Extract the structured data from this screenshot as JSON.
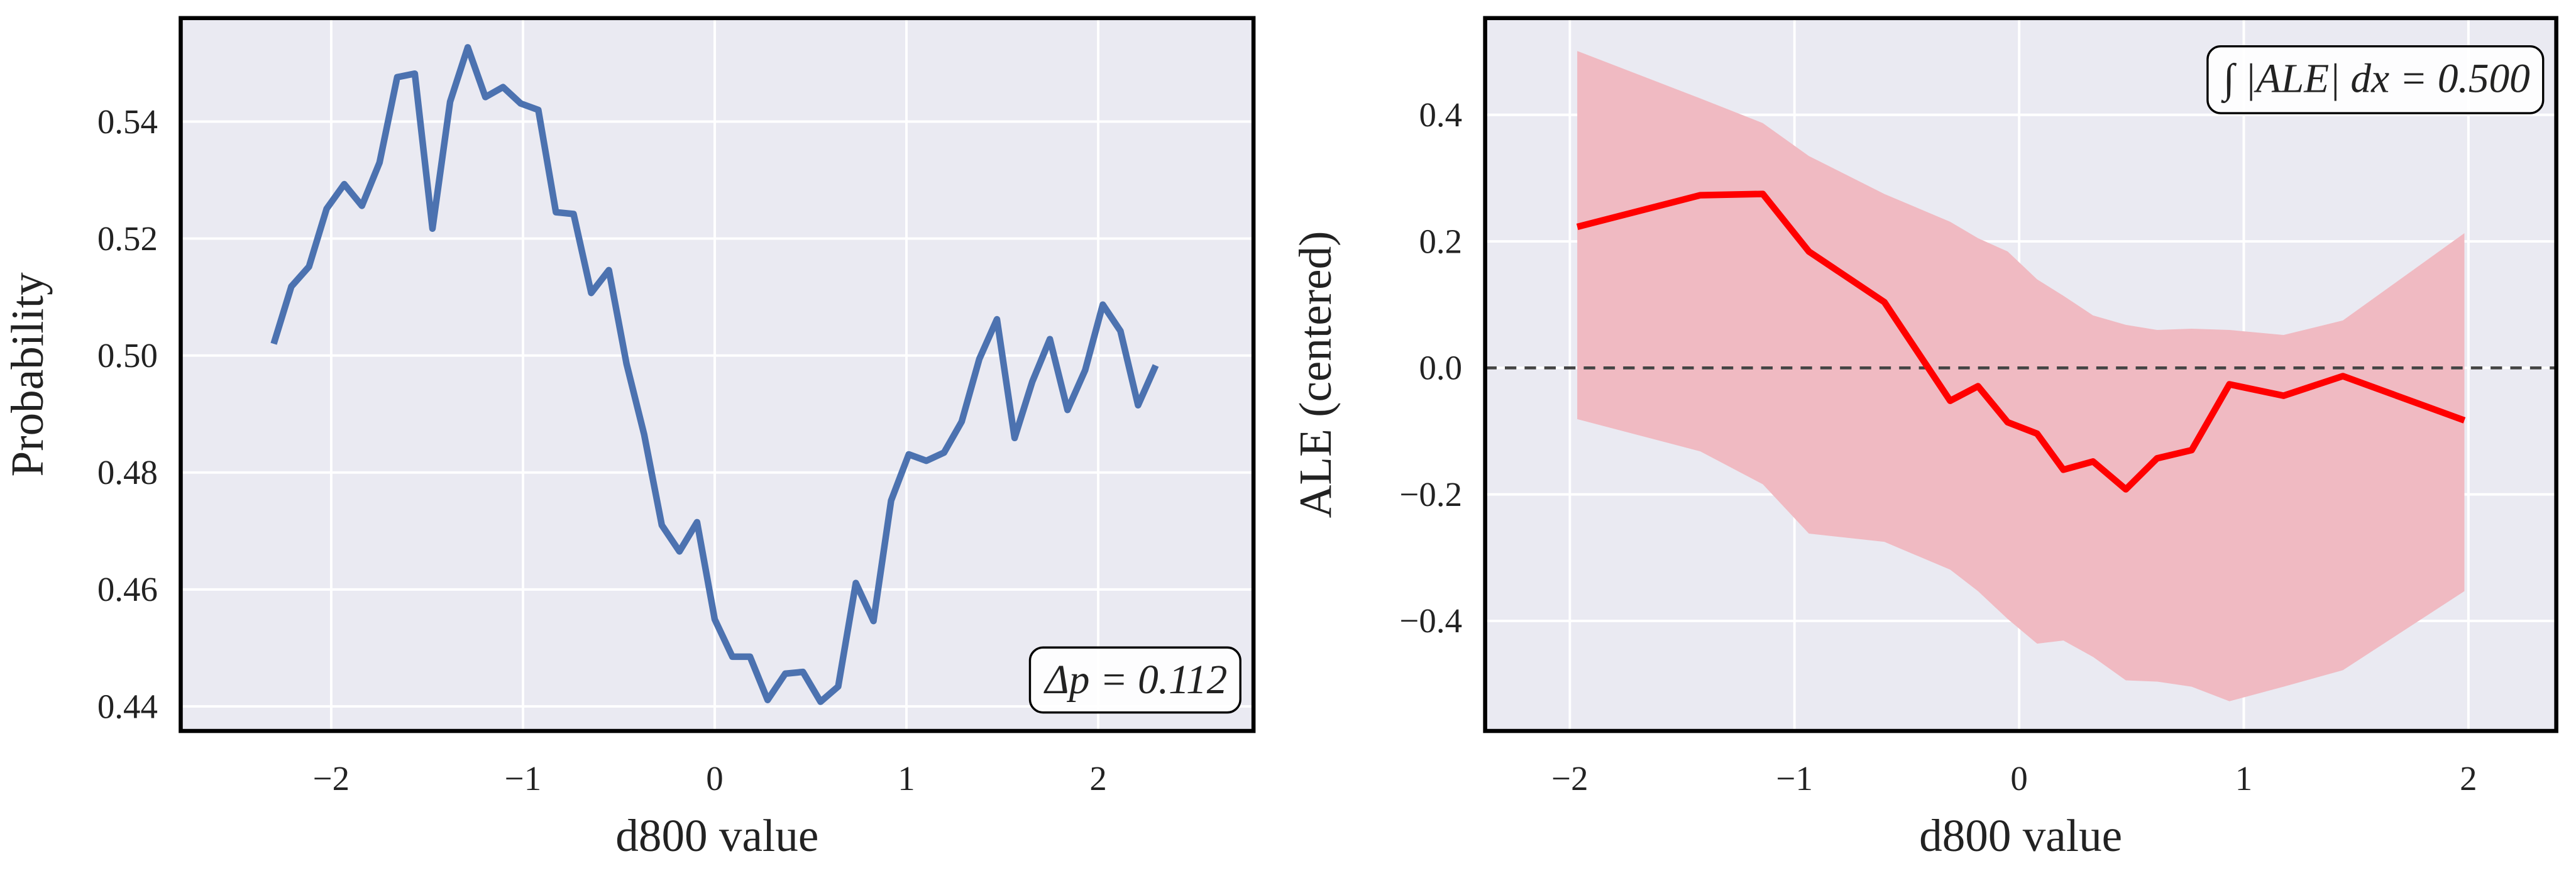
{
  "chart_data": [
    {
      "type": "line",
      "xlabel": "d800 value",
      "ylabel": "Probability",
      "color": "#4c72b0",
      "grid": true,
      "annotation": "Δp = 0.112",
      "annotation_corner": "lower right",
      "x": [
        -2.3,
        -2.208,
        -2.116,
        -2.024,
        -1.932,
        -1.84,
        -1.748,
        -1.656,
        -1.564,
        -1.472,
        -1.38,
        -1.288,
        -1.196,
        -1.104,
        -1.012,
        -0.92,
        -0.828,
        -0.736,
        -0.644,
        -0.552,
        -0.46,
        -0.368,
        -0.276,
        -0.184,
        -0.092,
        0,
        0.092,
        0.184,
        0.276,
        0.368,
        0.46,
        0.552,
        0.644,
        0.736,
        0.828,
        0.92,
        1.012,
        1.104,
        1.196,
        1.288,
        1.38,
        1.472,
        1.564,
        1.656,
        1.748,
        1.84,
        1.932,
        2.024,
        2.116,
        2.208,
        2.3
      ],
      "values": [
        0.502,
        0.5118,
        0.5152,
        0.5251,
        0.5293,
        0.5256,
        0.533,
        0.5476,
        0.5482,
        0.5217,
        0.5434,
        0.5527,
        0.5442,
        0.5459,
        0.5431,
        0.542,
        0.5245,
        0.5242,
        0.5107,
        0.5146,
        0.4986,
        0.4865,
        0.471,
        0.4665,
        0.4715,
        0.4549,
        0.4485,
        0.4485,
        0.4411,
        0.4456,
        0.4459,
        0.4408,
        0.4434,
        0.4611,
        0.4546,
        0.4752,
        0.4831,
        0.482,
        0.4834,
        0.4887,
        0.4994,
        0.5062,
        0.4859,
        0.4955,
        0.5028,
        0.4907,
        0.4975,
        0.5087,
        0.5042,
        0.4915,
        0.4983
      ],
      "xlim": [
        -2.785,
        2.81
      ],
      "ylim": [
        0.4358,
        0.5577
      ],
      "xticks": [
        {
          "value": -2,
          "label": "−2"
        },
        {
          "value": -1,
          "label": "−1"
        },
        0,
        1,
        2
      ],
      "yticks": [
        0.44,
        0.46,
        0.48,
        {
          "value": 0.5,
          "label": "0.50"
        },
        0.52,
        0.54
      ]
    },
    {
      "type": "band_line",
      "xlabel": "d800 value",
      "ylabel": "ALE (centered)",
      "color": "#ff0000",
      "band_color": "#f0bac2",
      "grid": true,
      "annotation": "∫ |ALE| dx = 0.500",
      "annotation_corner": "upper right",
      "hline": 0,
      "x": [
        -1.967,
        -1.419,
        -1.141,
        -0.936,
        -0.6,
        -0.307,
        -0.183,
        -0.051,
        0.08,
        0.197,
        0.329,
        0.475,
        0.614,
        0.768,
        0.936,
        1.177,
        1.441,
        1.982
      ],
      "values": [
        0.223,
        0.273,
        0.275,
        0.184,
        0.104,
        -0.052,
        -0.029,
        -0.086,
        -0.104,
        -0.161,
        -0.148,
        -0.192,
        -0.143,
        -0.13,
        -0.026,
        -0.044,
        -0.013,
        -0.083
      ],
      "upper": [
        0.501,
        0.426,
        0.387,
        0.335,
        0.275,
        0.231,
        0.205,
        0.184,
        0.14,
        0.114,
        0.083,
        0.068,
        0.06,
        0.062,
        0.06,
        0.052,
        0.075,
        0.213
      ],
      "lower": [
        -0.081,
        -0.132,
        -0.184,
        -0.262,
        -0.275,
        -0.319,
        -0.353,
        -0.397,
        -0.436,
        -0.431,
        -0.457,
        -0.494,
        -0.496,
        -0.504,
        -0.527,
        -0.504,
        -0.478,
        -0.353
      ],
      "xlim": [
        -2.377,
        2.391
      ],
      "ylim": [
        -0.574,
        0.553
      ],
      "xticks": [
        {
          "value": -2,
          "label": "−2"
        },
        {
          "value": -1,
          "label": "−1"
        },
        0,
        1,
        2
      ],
      "yticks": [
        {
          "value": -0.4,
          "label": "−0.4"
        },
        {
          "value": -0.2,
          "label": "−0.2"
        },
        {
          "value": 0,
          "label": "0.0"
        },
        0.2,
        0.4
      ]
    }
  ]
}
